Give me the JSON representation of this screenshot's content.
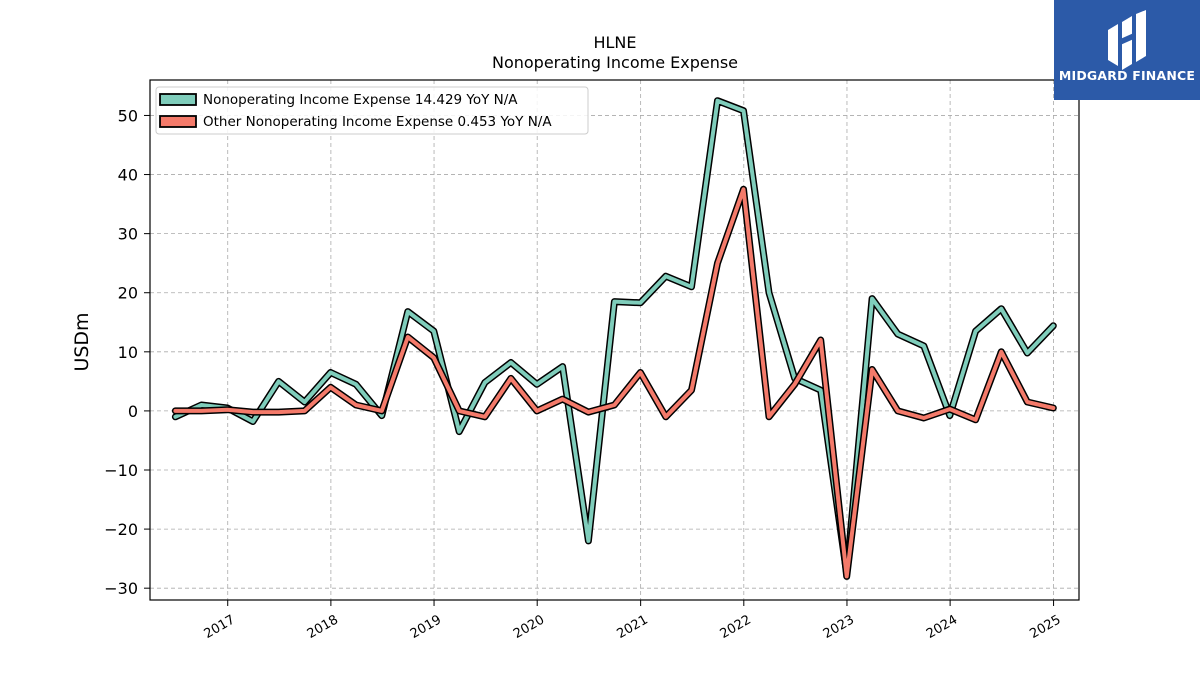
{
  "title_line1": "HLNE",
  "title_line2": "Nonoperating Income Expense",
  "logo_text": "MIDGARD FINANCE",
  "colors": {
    "teal": "#7fcdbb",
    "salmon": "#f47a6a",
    "grid": "#aaaaaa"
  },
  "chart_data": {
    "type": "line",
    "ylabel": "USDm",
    "ylim": [
      -32,
      56
    ],
    "yticks": [
      -30,
      -20,
      -10,
      0,
      10,
      20,
      30,
      40,
      50
    ],
    "ytick_labels": [
      "−30",
      "−20",
      "−10",
      "0",
      "10",
      "20",
      "30",
      "40",
      "50"
    ],
    "x_range": [
      "2016-04-01",
      "2025-04-01"
    ],
    "xticks": [
      "2017-01-01",
      "2018-01-01",
      "2019-01-01",
      "2020-01-01",
      "2021-01-01",
      "2022-01-01",
      "2023-01-01",
      "2024-01-01",
      "2025-01-01"
    ],
    "xtick_labels": [
      "2017",
      "2018",
      "2019",
      "2020",
      "2021",
      "2022",
      "2023",
      "2024",
      "2025"
    ],
    "grid": true,
    "legend_position": "top-left",
    "x": [
      "2016-06-30",
      "2016-09-30",
      "2016-12-31",
      "2017-03-31",
      "2017-06-30",
      "2017-09-30",
      "2017-12-31",
      "2018-03-31",
      "2018-06-30",
      "2018-09-30",
      "2018-12-31",
      "2019-03-31",
      "2019-06-30",
      "2019-09-30",
      "2019-12-31",
      "2020-03-31",
      "2020-06-30",
      "2020-09-30",
      "2020-12-31",
      "2021-03-31",
      "2021-06-30",
      "2021-09-30",
      "2021-12-31",
      "2022-03-31",
      "2022-06-30",
      "2022-09-30",
      "2022-12-31",
      "2023-03-31",
      "2023-06-30",
      "2023-09-30",
      "2023-12-31",
      "2024-03-31",
      "2024-06-30",
      "2024-09-30",
      "2024-12-31"
    ],
    "series": [
      {
        "name": "Nonoperating Income Expense",
        "legend_label": "Nonoperating Income Expense  14.429 YoY N/A",
        "values": [
          -1.0,
          1.0,
          0.5,
          -1.8,
          5.0,
          1.5,
          6.5,
          4.5,
          -0.8,
          16.8,
          13.5,
          -3.5,
          4.8,
          8.2,
          4.5,
          7.5,
          -22.0,
          18.5,
          18.3,
          22.8,
          21.0,
          52.5,
          50.8,
          20.0,
          5.5,
          3.5,
          -27.5,
          19.0,
          13.0,
          11.0,
          -0.8,
          13.5,
          17.3,
          9.8,
          14.4
        ]
      },
      {
        "name": "Other Nonoperating Income Expense",
        "legend_label": "Other Nonoperating Income Expense  0.453 YoY N/A",
        "values": [
          0.0,
          0.0,
          0.2,
          -0.2,
          -0.2,
          0.0,
          4.0,
          1.0,
          0.0,
          12.5,
          9.0,
          0.0,
          -1.0,
          5.5,
          0.0,
          2.0,
          -0.2,
          1.0,
          6.5,
          -1.0,
          3.5,
          25.0,
          37.5,
          -1.0,
          4.5,
          12.0,
          -28.0,
          7.0,
          0.0,
          -1.2,
          0.3,
          -1.5,
          10.0,
          1.5,
          0.5
        ]
      }
    ]
  }
}
